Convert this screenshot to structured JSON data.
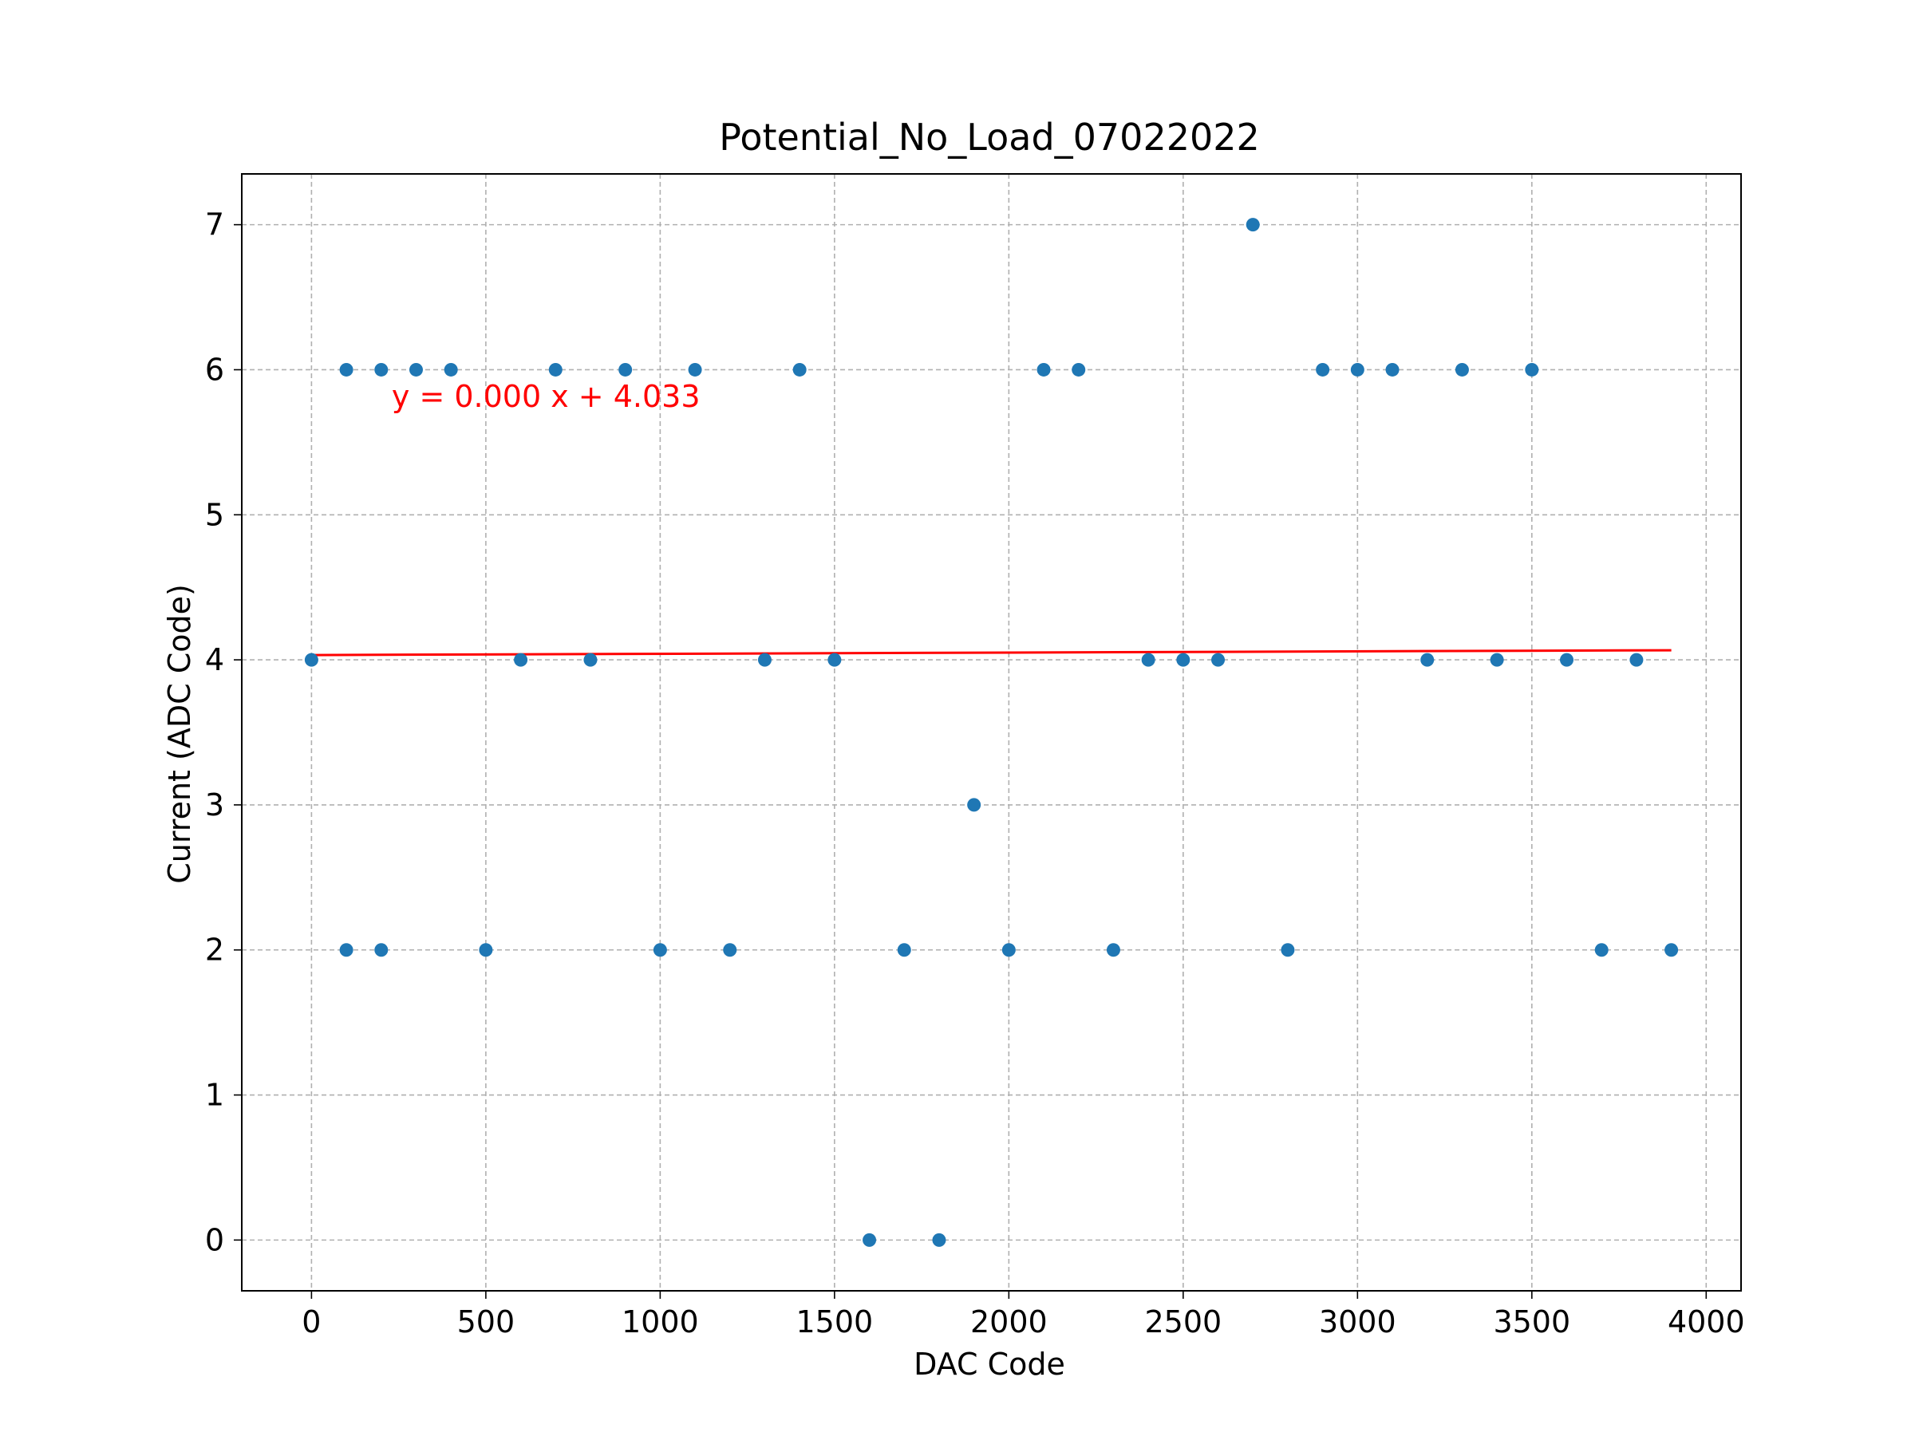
{
  "chart_data": {
    "type": "scatter",
    "title": "Potential_No_Load_07022022",
    "xlabel": "DAC Code",
    "ylabel": "Current (ADC Code)",
    "xlim": [
      -200,
      4100
    ],
    "ylim": [
      -0.35,
      7.35
    ],
    "xticks": [
      0,
      500,
      1000,
      1500,
      2000,
      2500,
      3000,
      3500,
      4000
    ],
    "yticks": [
      0,
      1,
      2,
      3,
      4,
      5,
      6,
      7
    ],
    "grid": true,
    "series": [
      {
        "color": "#1f77b4",
        "x": [
          0,
          100,
          100,
          200,
          200,
          300,
          400,
          500,
          600,
          700,
          800,
          900,
          1000,
          1100,
          1200,
          1300,
          1400,
          1500,
          1600,
          1700,
          1800,
          1900,
          2000,
          2100,
          2200,
          2300,
          2400,
          2500,
          2600,
          2700,
          2800,
          2900,
          3000,
          3100,
          3200,
          3300,
          3400,
          3500,
          3600,
          3700,
          3800,
          3900
        ],
        "y": [
          4,
          6,
          2,
          6,
          2,
          6,
          6,
          2,
          4,
          6,
          4,
          6,
          2,
          6,
          2,
          4,
          6,
          4,
          0,
          2,
          0,
          3,
          2,
          6,
          6,
          2,
          4,
          4,
          4,
          7,
          2,
          6,
          6,
          6,
          4,
          6,
          4,
          6,
          4,
          2,
          4,
          2
        ]
      }
    ],
    "fit": {
      "color": "#ff0000",
      "slope": 8.5e-06,
      "intercept": 4.033,
      "x_range": [
        0,
        3900
      ],
      "label": "y = 0.000 x + 4.033",
      "label_x": 230,
      "label_y": 5.82
    }
  }
}
